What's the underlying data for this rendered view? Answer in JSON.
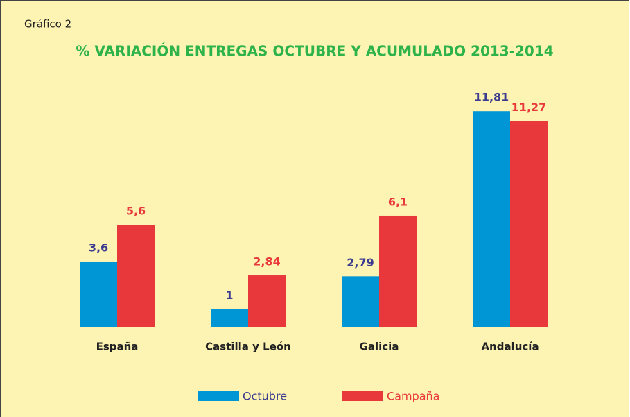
{
  "chart_data": {
    "type": "bar",
    "label": "Gráfico 2",
    "title": "% VARIACIÓN ENTREGAS OCTUBRE Y ACUMULADO 2013-2014",
    "categories": [
      "España",
      "Castilla y León",
      "Galicia",
      "Andalucía"
    ],
    "series": [
      {
        "name": "Octubre",
        "color": "#0096d6",
        "label_color": "#3b3b8f",
        "values": [
          3.6,
          1,
          2.79,
          11.81
        ],
        "value_labels": [
          "3,6",
          "1",
          "2,79",
          "11,81"
        ]
      },
      {
        "name": "Campaña",
        "color": "#e8383b",
        "label_color": "#e8383b",
        "values": [
          5.6,
          2.84,
          6.1,
          11.27
        ],
        "value_labels": [
          "5,6",
          "2,84",
          "6,1",
          "11,27"
        ]
      }
    ]
  }
}
